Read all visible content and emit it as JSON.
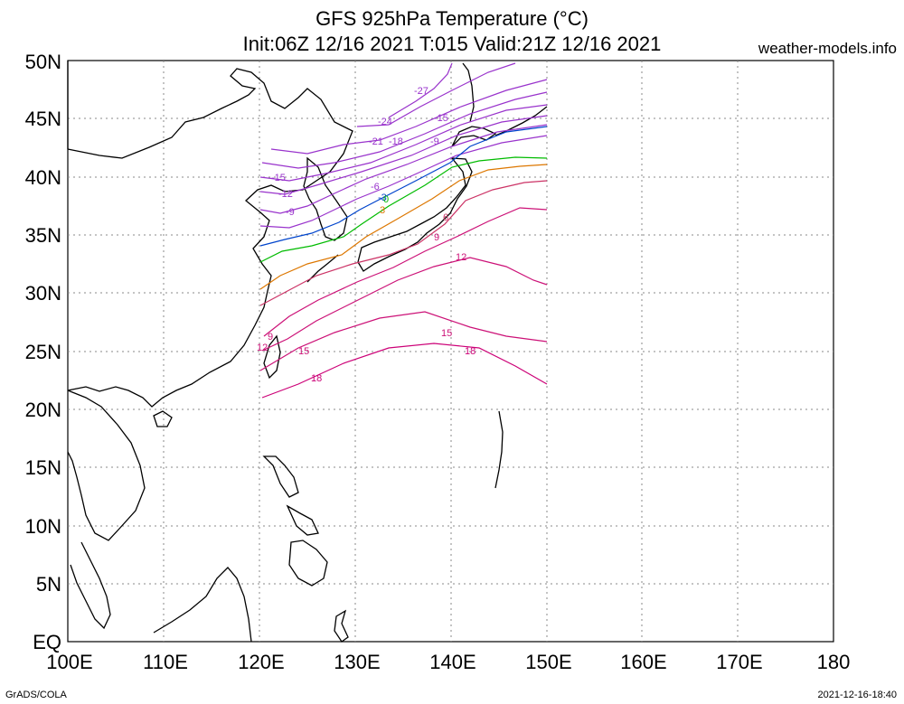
{
  "header": {
    "title": "GFS 925hPa Temperature (°C)",
    "subtitle": "Init:06Z 12/16 2021 T:015 Valid:21Z 12/16 2021",
    "site": "weather-models.info"
  },
  "footer": {
    "left": "GrADS/COLA",
    "right": "2021-12-16-18:40"
  },
  "map": {
    "lat_labels": [
      "EQ",
      "5N",
      "10N",
      "15N",
      "20N",
      "25N",
      "30N",
      "35N",
      "40N",
      "45N",
      "50N"
    ],
    "lon_labels": [
      "100E",
      "110E",
      "120E",
      "130E",
      "140E",
      "150E",
      "160E",
      "170E",
      "180"
    ],
    "lat_range": [
      0,
      50
    ],
    "lon_range": [
      100,
      180
    ],
    "grid": "dotted",
    "contour_labels": [
      {
        "text": "-27",
        "color": "#9933cc"
      },
      {
        "text": "-24",
        "color": "#9933cc"
      },
      {
        "text": "-21",
        "color": "#9933cc"
      },
      {
        "text": "-18",
        "color": "#9933cc"
      },
      {
        "text": "-15",
        "color": "#9933cc"
      },
      {
        "text": "-15",
        "color": "#9933cc"
      },
      {
        "text": "-12",
        "color": "#9933cc"
      },
      {
        "text": "-9",
        "color": "#9933cc"
      },
      {
        "text": "-9",
        "color": "#9933cc"
      },
      {
        "text": "-6",
        "color": "#9933cc"
      },
      {
        "text": "-3",
        "color": "#0044cc"
      },
      {
        "text": "0",
        "color": "#00bb00"
      },
      {
        "text": "3",
        "color": "#dd7700"
      },
      {
        "text": "6",
        "color": "#cc3366"
      },
      {
        "text": "9",
        "color": "#cc1177"
      },
      {
        "text": "9",
        "color": "#cc1177"
      },
      {
        "text": "12",
        "color": "#cc1177"
      },
      {
        "text": "12",
        "color": "#cc1177"
      },
      {
        "text": "15",
        "color": "#cc1177"
      },
      {
        "text": "15",
        "color": "#cc1177"
      },
      {
        "text": "18",
        "color": "#cc0077"
      },
      {
        "text": "18",
        "color": "#cc0077"
      }
    ]
  }
}
